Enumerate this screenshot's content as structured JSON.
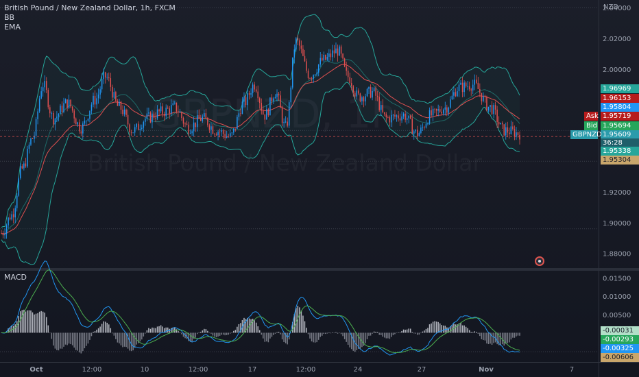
{
  "legend": {
    "symbol_title": "British Pound / New Zealand Dollar, 1h, FXCM",
    "indicators": [
      "BB",
      "EMA"
    ],
    "macd_label": "MACD"
  },
  "watermark": {
    "ticker": "GBPNZD, 1h",
    "description": "British Pound / New Zealand Dollar"
  },
  "colors": {
    "background": "#171a23",
    "bollinger": "#26a69a",
    "ema": "#e05050",
    "candle_up": "#2196f3",
    "candle_down": "#e05050",
    "macd_line": "#2196f3",
    "signal_line": "#4caf50",
    "histogram_up": "#b2b5be",
    "histogram_down": "#787b86"
  },
  "price_axis": {
    "currency": "NZD",
    "ticks": [
      "2.04000",
      "2.02000",
      "2.00000",
      "1.92000",
      "1.90000",
      "1.88000"
    ]
  },
  "price_tags": [
    {
      "label": "",
      "value": "1.96969",
      "color": "#26a69a"
    },
    {
      "label": "",
      "value": "1.96153",
      "color": "#b71c1c"
    },
    {
      "label": "",
      "value": "1.95804",
      "color": "#2196f3"
    },
    {
      "label": "Ask",
      "value": "1.95719",
      "color": "#b71c1c"
    },
    {
      "label": "Bid",
      "value": "1.95694",
      "color": "#26a65b"
    },
    {
      "label": "GBPNZD",
      "value": "1.95609",
      "color": "#2a9bab"
    },
    {
      "label": "",
      "value": "36:28",
      "color": "#2a9bab"
    },
    {
      "label": "",
      "value": "1.95338",
      "color": "#26a69a"
    },
    {
      "label": "",
      "value": "1.95304",
      "color": "#c9a66b"
    }
  ],
  "macd_axis": {
    "ticks": [
      "0.01500",
      "0.01000",
      "0.00500"
    ],
    "tags": [
      {
        "value": "-0.00031",
        "color": "#b2dfc8"
      },
      {
        "value": "-0.00293",
        "color": "#26a65b"
      },
      {
        "value": "-0.00325",
        "color": "#2196f3"
      },
      {
        "value": "-0.00606",
        "color": "#c9a66b"
      }
    ]
  },
  "time_axis": {
    "labels": [
      "Oct",
      "12:00",
      "10",
      "12:00",
      "17",
      "12:00",
      "24",
      "27",
      "Nov",
      "7"
    ]
  },
  "chart_data": [
    {
      "type": "candlestick",
      "title": "British Pound / New Zealand Dollar, 1h, FXCM",
      "ylabel": "NZD",
      "ylim": [
        1.87,
        2.045
      ],
      "x": [
        "Oct",
        "12:00",
        "10",
        "12:00",
        "17",
        "12:00",
        "24",
        "27",
        "Nov",
        "7"
      ],
      "series": [
        {
          "name": "BB",
          "note": "Bollinger Bands"
        },
        {
          "name": "EMA"
        }
      ],
      "last_price": 1.95609,
      "ask": 1.95719,
      "bid": 1.95694,
      "indicator_values": [
        1.96969,
        1.96153,
        1.95804,
        1.95338,
        1.95304
      ]
    },
    {
      "type": "line",
      "title": "MACD",
      "ylim": [
        -0.008,
        0.017
      ],
      "series": [
        {
          "name": "MACD"
        },
        {
          "name": "Signal"
        },
        {
          "name": "Histogram"
        }
      ],
      "indicator_values": [
        -0.00031,
        -0.00293,
        -0.00325,
        -0.00606
      ]
    }
  ]
}
